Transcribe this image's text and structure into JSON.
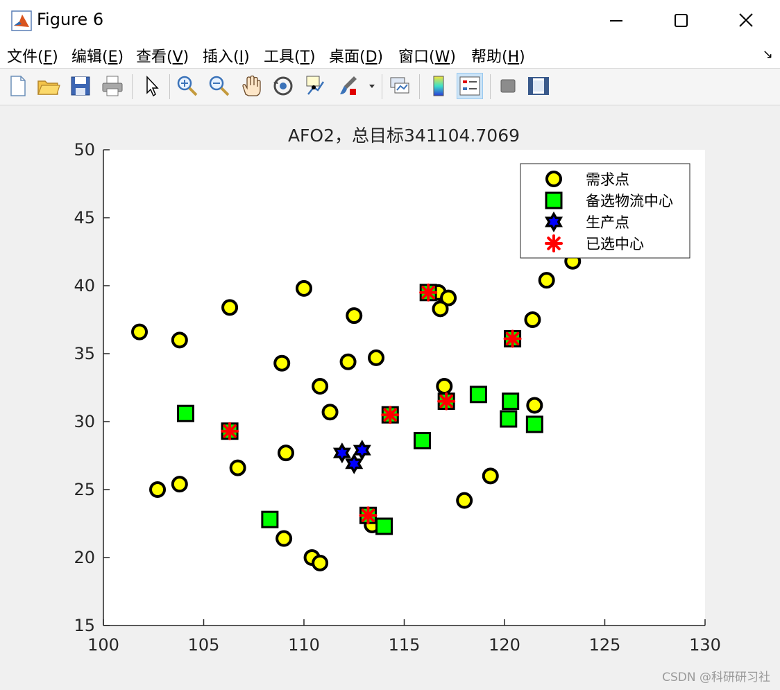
{
  "window": {
    "title": "Figure 6",
    "minimize_icon": "minimize-icon",
    "maximize_icon": "maximize-icon",
    "close_icon": "close-icon"
  },
  "menu": [
    {
      "label": "文件(",
      "key": "F",
      "end": ")"
    },
    {
      "label": "编辑(",
      "key": "E",
      "end": ")"
    },
    {
      "label": "查看(",
      "key": "V",
      "end": ")"
    },
    {
      "label": "插入(",
      "key": "I",
      "end": ")"
    },
    {
      "label": "工具(",
      "key": "T",
      "end": ")"
    },
    {
      "label": "桌面(",
      "key": "D",
      "end": ")"
    },
    {
      "label": "窗口(",
      "key": "W",
      "end": ")"
    },
    {
      "label": "帮助(",
      "key": "H",
      "end": ")"
    }
  ],
  "toolbar": [
    "new-figure-icon",
    "open-file-icon",
    "save-icon",
    "print-icon",
    "pointer-icon",
    "zoom-in-icon",
    "zoom-out-icon",
    "pan-hand-icon",
    "rotate-3d-icon",
    "data-cursor-icon",
    "brush-icon",
    "link-plot-icon",
    "colorbar-icon",
    "legend-icon",
    "hide-plot-tools-icon",
    "show-plot-tools-icon"
  ],
  "watermark": "CSDN @科研研习社",
  "chart_data": {
    "type": "scatter",
    "title": "AFO2，总目标341104.7069",
    "xlim": [
      100,
      130
    ],
    "ylim": [
      15,
      50
    ],
    "xticks": [
      100,
      105,
      110,
      115,
      120,
      125,
      130
    ],
    "yticks": [
      15,
      20,
      25,
      30,
      35,
      40,
      45,
      50
    ],
    "grid": false,
    "legend_position": "top-right",
    "series": [
      {
        "name": "需求点",
        "marker": "circle",
        "fill": "#ffff00",
        "edge": "#000000",
        "points": [
          [
            101.8,
            36.6
          ],
          [
            103.8,
            36.0
          ],
          [
            106.3,
            38.4
          ],
          [
            110.0,
            39.8
          ],
          [
            112.5,
            37.8
          ],
          [
            116.7,
            39.5
          ],
          [
            117.2,
            39.1
          ],
          [
            116.8,
            38.3
          ],
          [
            123.4,
            41.8
          ],
          [
            122.1,
            40.4
          ],
          [
            121.4,
            37.5
          ],
          [
            108.9,
            34.3
          ],
          [
            112.2,
            34.4
          ],
          [
            113.6,
            34.7
          ],
          [
            110.8,
            32.6
          ],
          [
            111.3,
            30.7
          ],
          [
            117.0,
            32.6
          ],
          [
            121.5,
            31.2
          ],
          [
            102.7,
            25.0
          ],
          [
            103.8,
            25.4
          ],
          [
            106.7,
            26.6
          ],
          [
            109.1,
            27.7
          ],
          [
            119.3,
            26.0
          ],
          [
            118.0,
            24.2
          ],
          [
            109.0,
            21.4
          ],
          [
            110.4,
            20.0
          ],
          [
            110.8,
            19.6
          ],
          [
            113.4,
            22.4
          ]
        ]
      },
      {
        "name": "备选物流中心",
        "marker": "square",
        "fill": "#00ff00",
        "edge": "#000000",
        "points": [
          [
            104.1,
            30.6
          ],
          [
            106.3,
            29.3
          ],
          [
            108.3,
            22.8
          ],
          [
            113.2,
            23.1
          ],
          [
            114.0,
            22.3
          ],
          [
            114.3,
            30.5
          ],
          [
            115.9,
            28.6
          ],
          [
            116.2,
            39.5
          ],
          [
            117.1,
            31.5
          ],
          [
            118.7,
            32.0
          ],
          [
            120.2,
            30.2
          ],
          [
            120.3,
            31.5
          ],
          [
            121.5,
            29.8
          ],
          [
            120.4,
            36.1
          ]
        ]
      },
      {
        "name": "生产点",
        "marker": "hexagram",
        "fill": "#0000ff",
        "edge": "#000000",
        "points": [
          [
            111.9,
            27.7
          ],
          [
            112.9,
            27.9
          ],
          [
            112.5,
            26.9
          ]
        ]
      },
      {
        "name": "已选中心",
        "marker": "asterisk",
        "fill": "#ff0000",
        "edge": "#ff0000",
        "points": [
          [
            106.3,
            29.3
          ],
          [
            116.2,
            39.5
          ],
          [
            120.4,
            36.1
          ],
          [
            117.1,
            31.5
          ],
          [
            114.3,
            30.5
          ],
          [
            113.2,
            23.1
          ]
        ]
      }
    ]
  }
}
